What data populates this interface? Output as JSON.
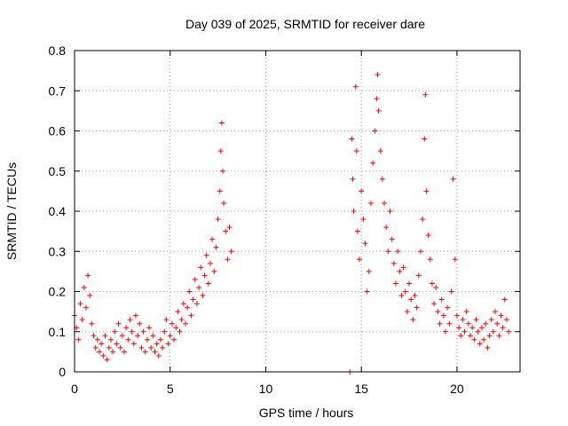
{
  "chart_data": {
    "type": "scatter",
    "title": "Day 039 of 2025, SRMTID for receiver dare",
    "xlabel": "GPS time / hours",
    "ylabel": "SRMTID / TECUs",
    "xlim": [
      0,
      23.3
    ],
    "ylim": [
      0,
      0.8
    ],
    "x_ticks": [
      0,
      5,
      10,
      15,
      20
    ],
    "y_ticks": [
      0,
      0.1,
      0.2,
      0.3,
      0.4,
      0.5,
      0.6,
      0.7,
      0.8
    ],
    "x_tick_labels": [
      "0",
      "5",
      "10",
      "15",
      "20"
    ],
    "y_tick_labels": [
      "0",
      "0.1",
      "0.2",
      "0.3",
      "0.4",
      "0.5",
      "0.6",
      "0.7",
      "0.8"
    ],
    "grid": true,
    "marker": "plus",
    "color": "#ff0000",
    "series": [
      {
        "name": "SRMTID",
        "points": [
          [
            0.0,
            0.14
          ],
          [
            0.1,
            0.11
          ],
          [
            0.2,
            0.08
          ],
          [
            0.3,
            0.17
          ],
          [
            0.4,
            0.13
          ],
          [
            0.5,
            0.21
          ],
          [
            0.6,
            0.16
          ],
          [
            0.7,
            0.24
          ],
          [
            0.8,
            0.19
          ],
          [
            0.9,
            0.12
          ],
          [
            1.0,
            0.09
          ],
          [
            1.1,
            0.06
          ],
          [
            1.2,
            0.08
          ],
          [
            1.3,
            0.05
          ],
          [
            1.4,
            0.07
          ],
          [
            1.5,
            0.04
          ],
          [
            1.6,
            0.09
          ],
          [
            1.7,
            0.03
          ],
          [
            1.8,
            0.06
          ],
          [
            1.9,
            0.08
          ],
          [
            2.0,
            0.05
          ],
          [
            2.1,
            0.1
          ],
          [
            2.2,
            0.07
          ],
          [
            2.3,
            0.12
          ],
          [
            2.4,
            0.06
          ],
          [
            2.5,
            0.09
          ],
          [
            2.6,
            0.05
          ],
          [
            2.7,
            0.11
          ],
          [
            2.8,
            0.08
          ],
          [
            2.9,
            0.13
          ],
          [
            3.0,
            0.1
          ],
          [
            3.1,
            0.07
          ],
          [
            3.2,
            0.14
          ],
          [
            3.3,
            0.09
          ],
          [
            3.4,
            0.12
          ],
          [
            3.5,
            0.06
          ],
          [
            3.6,
            0.1
          ],
          [
            3.7,
            0.05
          ],
          [
            3.8,
            0.08
          ],
          [
            3.9,
            0.11
          ],
          [
            4.0,
            0.06
          ],
          [
            4.1,
            0.09
          ],
          [
            4.2,
            0.05
          ],
          [
            4.3,
            0.07
          ],
          [
            4.4,
            0.04
          ],
          [
            4.5,
            0.08
          ],
          [
            4.6,
            0.06
          ],
          [
            4.7,
            0.1
          ],
          [
            4.8,
            0.13
          ],
          [
            4.9,
            0.07
          ],
          [
            5.0,
            0.09
          ],
          [
            5.1,
            0.12
          ],
          [
            5.2,
            0.08
          ],
          [
            5.3,
            0.11
          ],
          [
            5.4,
            0.15
          ],
          [
            5.5,
            0.1
          ],
          [
            5.6,
            0.13
          ],
          [
            5.7,
            0.17
          ],
          [
            5.8,
            0.12
          ],
          [
            5.9,
            0.16
          ],
          [
            6.0,
            0.2
          ],
          [
            6.1,
            0.14
          ],
          [
            6.2,
            0.18
          ],
          [
            6.3,
            0.23
          ],
          [
            6.4,
            0.17
          ],
          [
            6.5,
            0.21
          ],
          [
            6.6,
            0.26
          ],
          [
            6.7,
            0.19
          ],
          [
            6.8,
            0.24
          ],
          [
            6.9,
            0.29
          ],
          [
            7.0,
            0.22
          ],
          [
            7.1,
            0.27
          ],
          [
            7.2,
            0.33
          ],
          [
            7.3,
            0.25
          ],
          [
            7.4,
            0.31
          ],
          [
            7.5,
            0.38
          ],
          [
            7.6,
            0.45
          ],
          [
            7.65,
            0.55
          ],
          [
            7.7,
            0.62
          ],
          [
            7.75,
            0.5
          ],
          [
            7.8,
            0.42
          ],
          [
            7.9,
            0.35
          ],
          [
            8.0,
            0.28
          ],
          [
            8.1,
            0.36
          ],
          [
            8.2,
            0.3
          ],
          [
            14.4,
            0.0
          ],
          [
            14.5,
            0.58
          ],
          [
            14.55,
            0.48
          ],
          [
            14.6,
            0.4
          ],
          [
            14.7,
            0.71
          ],
          [
            14.75,
            0.55
          ],
          [
            14.8,
            0.35
          ],
          [
            14.9,
            0.28
          ],
          [
            15.0,
            0.45
          ],
          [
            15.1,
            0.38
          ],
          [
            15.2,
            0.32
          ],
          [
            15.3,
            0.2
          ],
          [
            15.4,
            0.25
          ],
          [
            15.5,
            0.42
          ],
          [
            15.6,
            0.52
          ],
          [
            15.7,
            0.6
          ],
          [
            15.8,
            0.68
          ],
          [
            15.85,
            0.74
          ],
          [
            15.9,
            0.65
          ],
          [
            16.0,
            0.55
          ],
          [
            16.1,
            0.48
          ],
          [
            16.2,
            0.42
          ],
          [
            16.3,
            0.36
          ],
          [
            16.4,
            0.3
          ],
          [
            16.5,
            0.4
          ],
          [
            16.6,
            0.33
          ],
          [
            16.7,
            0.27
          ],
          [
            16.8,
            0.22
          ],
          [
            16.9,
            0.3
          ],
          [
            17.0,
            0.25
          ],
          [
            17.1,
            0.19
          ],
          [
            17.2,
            0.26
          ],
          [
            17.3,
            0.2
          ],
          [
            17.4,
            0.15
          ],
          [
            17.5,
            0.22
          ],
          [
            17.6,
            0.18
          ],
          [
            17.7,
            0.13
          ],
          [
            17.8,
            0.19
          ],
          [
            17.9,
            0.16
          ],
          [
            18.0,
            0.24
          ],
          [
            18.1,
            0.3
          ],
          [
            18.2,
            0.38
          ],
          [
            18.3,
            0.58
          ],
          [
            18.35,
            0.69
          ],
          [
            18.4,
            0.45
          ],
          [
            18.5,
            0.34
          ],
          [
            18.6,
            0.28
          ],
          [
            18.7,
            0.22
          ],
          [
            18.8,
            0.17
          ],
          [
            18.9,
            0.21
          ],
          [
            19.0,
            0.15
          ],
          [
            19.1,
            0.12
          ],
          [
            19.2,
            0.18
          ],
          [
            19.3,
            0.14
          ],
          [
            19.4,
            0.1
          ],
          [
            19.5,
            0.16
          ],
          [
            19.6,
            0.12
          ],
          [
            19.7,
            0.2
          ],
          [
            19.8,
            0.48
          ],
          [
            19.9,
            0.28
          ],
          [
            20.0,
            0.14
          ],
          [
            20.1,
            0.11
          ],
          [
            20.2,
            0.09
          ],
          [
            20.3,
            0.13
          ],
          [
            20.4,
            0.1
          ],
          [
            20.5,
            0.15
          ],
          [
            20.6,
            0.12
          ],
          [
            20.7,
            0.09
          ],
          [
            20.8,
            0.11
          ],
          [
            20.9,
            0.08
          ],
          [
            21.0,
            0.13
          ],
          [
            21.1,
            0.1
          ],
          [
            21.2,
            0.07
          ],
          [
            21.3,
            0.11
          ],
          [
            21.4,
            0.08
          ],
          [
            21.5,
            0.12
          ],
          [
            21.6,
            0.06
          ],
          [
            21.7,
            0.09
          ],
          [
            21.8,
            0.13
          ],
          [
            21.9,
            0.1
          ],
          [
            22.0,
            0.15
          ],
          [
            22.1,
            0.12
          ],
          [
            22.2,
            0.09
          ],
          [
            22.3,
            0.14
          ],
          [
            22.4,
            0.11
          ],
          [
            22.5,
            0.18
          ],
          [
            22.6,
            0.13
          ],
          [
            22.7,
            0.1
          ]
        ]
      }
    ]
  }
}
